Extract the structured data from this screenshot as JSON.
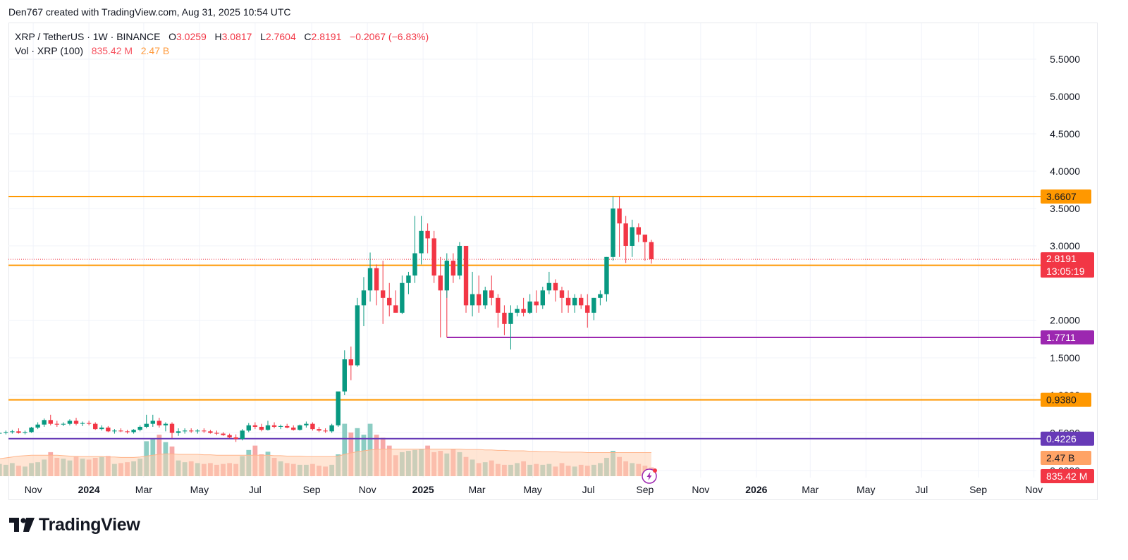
{
  "header": {
    "credit": "Den767 created with TradingView.com, Aug 31, 2025 10:54 UTC"
  },
  "legend": {
    "symbol": "XRP / TetherUS · 1W · BINANCE",
    "o_label": "O",
    "o_value": "3.0259",
    "h_label": "H",
    "h_value": "3.0817",
    "l_label": "L",
    "l_value": "2.7604",
    "c_label": "C",
    "c_value": "2.8191",
    "change": "−0.2067 (−6.83%)",
    "vol_label": "Vol · XRP (100)",
    "vol_value": "835.42 M",
    "vol_ma_value": "2.47 B"
  },
  "brand": {
    "name": "TradingView"
  },
  "colors": {
    "up": "#089981",
    "down": "#f23645",
    "vol_up": "#8ccdc3",
    "vol_down": "#f7a9a7",
    "vol_ma_fill": "#ffcfb0",
    "vol_ma_line": "#ffb48a",
    "orange_line": "#ff9800",
    "purple_line": "#9c27b0",
    "violet_line": "#673ab7",
    "price_badge": "#f23645",
    "grid": "#f0f3fa"
  },
  "chart_data": {
    "type": "candlestick",
    "title": "XRP / TetherUS · 1W · BINANCE",
    "y_axis": {
      "ticks": [
        "5.5000",
        "5.0000",
        "4.5000",
        "4.0000",
        "3.5000",
        "3.0000",
        "2.0000",
        "1.5000",
        "1.0000",
        "0.5000",
        "0.0000"
      ],
      "tick_values": [
        5.5,
        5.0,
        4.5,
        4.0,
        3.5,
        3.0,
        2.0,
        1.5,
        1.0,
        0.5,
        0.0
      ],
      "range": [
        0,
        5.5
      ]
    },
    "x_axis": {
      "ticks": [
        {
          "label": "Nov",
          "date": "2023-11-01",
          "year": false
        },
        {
          "label": "2024",
          "date": "2024-01-01",
          "year": true
        },
        {
          "label": "Mar",
          "date": "2024-03-01",
          "year": false
        },
        {
          "label": "May",
          "date": "2024-05-01",
          "year": false
        },
        {
          "label": "Jul",
          "date": "2024-07-01",
          "year": false
        },
        {
          "label": "Sep",
          "date": "2024-09-01",
          "year": false
        },
        {
          "label": "Nov",
          "date": "2024-11-01",
          "year": false
        },
        {
          "label": "2025",
          "date": "2025-01-01",
          "year": true
        },
        {
          "label": "Mar",
          "date": "2025-03-01",
          "year": false
        },
        {
          "label": "May",
          "date": "2025-05-01",
          "year": false
        },
        {
          "label": "Jul",
          "date": "2025-07-01",
          "year": false
        },
        {
          "label": "Sep",
          "date": "2025-09-01",
          "year": false
        },
        {
          "label": "Nov",
          "date": "2025-11-01",
          "year": false
        },
        {
          "label": "2026",
          "date": "2026-01-01",
          "year": true
        },
        {
          "label": "Mar",
          "date": "2026-03-01",
          "year": false
        },
        {
          "label": "May",
          "date": "2026-05-01",
          "year": false
        },
        {
          "label": "Jul",
          "date": "2026-07-01",
          "year": false
        },
        {
          "label": "Sep",
          "date": "2026-09-01",
          "year": false
        },
        {
          "label": "Nov",
          "date": "2026-11-01",
          "year": false
        }
      ]
    },
    "horizontal_levels": [
      {
        "value": 3.6607,
        "label": "3.6607",
        "color": "#ff9800",
        "from_date": null
      },
      {
        "value": 2.7387,
        "label": "2.7387",
        "color": "#ff9800",
        "from_date": null
      },
      {
        "value": 1.7711,
        "label": "1.7711",
        "color": "#9c27b0",
        "from_date": "2025-01-27"
      },
      {
        "value": 0.938,
        "label": "0.9380",
        "color": "#ff9800",
        "from_date": null
      },
      {
        "value": 0.4226,
        "label": "0.4226",
        "color": "#673ab7",
        "from_date": null
      }
    ],
    "last_price": {
      "value": 2.8191,
      "label": "2.8191",
      "countdown": "13:05:19"
    },
    "volume_badges": {
      "ma": "2.47 B",
      "current": "835.42 M"
    },
    "first_week": "2023-09-25",
    "candles": [
      [
        0.49,
        0.52,
        0.47,
        0.5
      ],
      [
        0.5,
        0.53,
        0.48,
        0.51
      ],
      [
        0.51,
        0.54,
        0.49,
        0.52
      ],
      [
        0.52,
        0.56,
        0.49,
        0.5
      ],
      [
        0.5,
        0.53,
        0.48,
        0.51
      ],
      [
        0.51,
        0.58,
        0.5,
        0.57
      ],
      [
        0.57,
        0.64,
        0.55,
        0.61
      ],
      [
        0.61,
        0.69,
        0.58,
        0.67
      ],
      [
        0.67,
        0.74,
        0.6,
        0.62
      ],
      [
        0.62,
        0.66,
        0.58,
        0.61
      ],
      [
        0.61,
        0.64,
        0.59,
        0.62
      ],
      [
        0.62,
        0.68,
        0.6,
        0.66
      ],
      [
        0.66,
        0.7,
        0.6,
        0.62
      ],
      [
        0.62,
        0.65,
        0.59,
        0.63
      ],
      [
        0.63,
        0.66,
        0.6,
        0.62
      ],
      [
        0.62,
        0.64,
        0.54,
        0.55
      ],
      [
        0.55,
        0.6,
        0.53,
        0.57
      ],
      [
        0.57,
        0.59,
        0.51,
        0.52
      ],
      [
        0.52,
        0.55,
        0.49,
        0.53
      ],
      [
        0.53,
        0.56,
        0.51,
        0.52
      ],
      [
        0.52,
        0.54,
        0.49,
        0.51
      ],
      [
        0.51,
        0.55,
        0.49,
        0.54
      ],
      [
        0.54,
        0.6,
        0.52,
        0.58
      ],
      [
        0.58,
        0.74,
        0.56,
        0.62
      ],
      [
        0.62,
        0.74,
        0.58,
        0.66
      ],
      [
        0.66,
        0.7,
        0.57,
        0.6
      ],
      [
        0.6,
        0.64,
        0.52,
        0.62
      ],
      [
        0.62,
        0.64,
        0.43,
        0.5
      ],
      [
        0.5,
        0.56,
        0.46,
        0.52
      ],
      [
        0.52,
        0.56,
        0.49,
        0.53
      ],
      [
        0.53,
        0.56,
        0.5,
        0.52
      ],
      [
        0.52,
        0.55,
        0.49,
        0.53
      ],
      [
        0.53,
        0.56,
        0.5,
        0.52
      ],
      [
        0.52,
        0.54,
        0.49,
        0.5
      ],
      [
        0.5,
        0.53,
        0.47,
        0.49
      ],
      [
        0.49,
        0.51,
        0.46,
        0.47
      ],
      [
        0.47,
        0.49,
        0.43,
        0.44
      ],
      [
        0.44,
        0.48,
        0.38,
        0.42
      ],
      [
        0.42,
        0.55,
        0.4,
        0.53
      ],
      [
        0.53,
        0.63,
        0.51,
        0.6
      ],
      [
        0.6,
        0.64,
        0.55,
        0.58
      ],
      [
        0.58,
        0.62,
        0.52,
        0.54
      ],
      [
        0.54,
        0.66,
        0.53,
        0.6
      ],
      [
        0.6,
        0.64,
        0.56,
        0.58
      ],
      [
        0.58,
        0.61,
        0.55,
        0.59
      ],
      [
        0.59,
        0.62,
        0.56,
        0.57
      ],
      [
        0.57,
        0.6,
        0.53,
        0.54
      ],
      [
        0.54,
        0.61,
        0.53,
        0.6
      ],
      [
        0.6,
        0.65,
        0.57,
        0.62
      ],
      [
        0.62,
        0.64,
        0.53,
        0.55
      ],
      [
        0.55,
        0.58,
        0.51,
        0.53
      ],
      [
        0.53,
        0.56,
        0.5,
        0.52
      ],
      [
        0.52,
        0.62,
        0.5,
        0.6
      ],
      [
        0.6,
        1.02,
        0.58,
        1.05
      ],
      [
        1.05,
        1.6,
        1.0,
        1.48
      ],
      [
        1.48,
        1.65,
        1.2,
        1.4
      ],
      [
        1.4,
        2.3,
        1.38,
        2.2
      ],
      [
        2.2,
        2.58,
        1.92,
        2.4
      ],
      [
        2.4,
        2.91,
        2.25,
        2.7
      ],
      [
        2.7,
        2.75,
        2.2,
        2.4
      ],
      [
        2.4,
        2.8,
        1.95,
        2.3
      ],
      [
        2.3,
        2.5,
        2.05,
        2.2
      ],
      [
        2.2,
        2.4,
        2.1,
        2.1
      ],
      [
        2.1,
        2.6,
        2.08,
        2.5
      ],
      [
        2.5,
        2.65,
        2.35,
        2.6
      ],
      [
        2.6,
        3.4,
        2.5,
        2.9
      ],
      [
        2.9,
        3.4,
        2.75,
        3.2
      ],
      [
        3.2,
        3.3,
        2.9,
        3.1
      ],
      [
        3.1,
        3.2,
        2.5,
        2.6
      ],
      [
        2.6,
        2.85,
        1.77,
        2.4
      ],
      [
        2.4,
        2.9,
        2.3,
        2.8
      ],
      [
        2.8,
        2.9,
        2.5,
        2.6
      ],
      [
        2.6,
        3.05,
        2.55,
        3.0
      ],
      [
        3.0,
        3.0,
        2.1,
        2.2
      ],
      [
        2.2,
        2.65,
        2.05,
        2.35
      ],
      [
        2.35,
        2.6,
        2.1,
        2.2
      ],
      [
        2.2,
        2.45,
        2.15,
        2.4
      ],
      [
        2.4,
        2.6,
        2.2,
        2.3
      ],
      [
        2.3,
        2.35,
        1.9,
        2.1
      ],
      [
        2.1,
        2.2,
        1.8,
        1.95
      ],
      [
        1.95,
        2.2,
        1.61,
        2.1
      ],
      [
        2.1,
        2.2,
        2.05,
        2.15
      ],
      [
        2.15,
        2.3,
        2.05,
        2.1
      ],
      [
        2.1,
        2.35,
        2.08,
        2.25
      ],
      [
        2.25,
        2.4,
        2.1,
        2.2
      ],
      [
        2.2,
        2.45,
        2.15,
        2.4
      ],
      [
        2.4,
        2.65,
        2.35,
        2.5
      ],
      [
        2.5,
        2.55,
        2.25,
        2.4
      ],
      [
        2.4,
        2.45,
        2.1,
        2.3
      ],
      [
        2.3,
        2.4,
        2.1,
        2.2
      ],
      [
        2.2,
        2.35,
        2.1,
        2.3
      ],
      [
        2.3,
        2.35,
        2.15,
        2.2
      ],
      [
        2.2,
        2.35,
        1.9,
        2.1
      ],
      [
        2.1,
        2.3,
        2.0,
        2.3
      ],
      [
        2.3,
        2.4,
        2.2,
        2.35
      ],
      [
        2.35,
        2.85,
        2.25,
        2.85
      ],
      [
        2.85,
        3.66,
        2.8,
        3.5
      ],
      [
        3.5,
        3.66,
        2.85,
        3.3
      ],
      [
        3.3,
        3.4,
        2.77,
        3.0
      ],
      [
        3.0,
        3.35,
        2.85,
        3.25
      ],
      [
        3.25,
        3.3,
        3.05,
        3.15
      ],
      [
        3.15,
        3.1,
        2.8,
        3.05
      ],
      [
        3.05,
        3.08,
        2.76,
        2.82
      ]
    ],
    "volume": [
      0.28,
      0.26,
      0.3,
      0.24,
      0.22,
      0.3,
      0.32,
      0.38,
      0.55,
      0.42,
      0.4,
      0.36,
      0.46,
      0.4,
      0.38,
      0.42,
      0.44,
      0.46,
      0.28,
      0.3,
      0.32,
      0.34,
      0.4,
      0.8,
      0.85,
      0.95,
      0.78,
      0.68,
      0.36,
      0.32,
      0.34,
      0.3,
      0.28,
      0.3,
      0.26,
      0.28,
      0.3,
      0.28,
      0.46,
      0.6,
      0.7,
      0.5,
      0.56,
      0.42,
      0.34,
      0.3,
      0.28,
      0.26,
      0.26,
      0.28,
      0.24,
      0.22,
      0.26,
      0.5,
      1.2,
      1.0,
      1.1,
      0.95,
      1.2,
      0.95,
      0.88,
      0.7,
      0.48,
      0.55,
      0.58,
      0.6,
      0.62,
      0.7,
      0.55,
      0.58,
      0.52,
      0.62,
      0.55,
      0.44,
      0.38,
      0.3,
      0.32,
      0.36,
      0.28,
      0.26,
      0.26,
      0.3,
      0.34,
      0.26,
      0.28,
      0.26,
      0.28,
      0.22,
      0.3,
      0.24,
      0.22,
      0.26,
      0.24,
      0.26,
      0.3,
      0.42,
      0.58,
      0.44,
      0.34,
      0.3,
      0.28,
      0.24,
      0.2
    ],
    "volume_ma": [
      0.4,
      0.42,
      0.44,
      0.46,
      0.47,
      0.48,
      0.48,
      0.48,
      0.48,
      0.48,
      0.47,
      0.46,
      0.45,
      0.45,
      0.45,
      0.45,
      0.45,
      0.44,
      0.44,
      0.43,
      0.43,
      0.43,
      0.44,
      0.46,
      0.48,
      0.5,
      0.51,
      0.51,
      0.5,
      0.5,
      0.5,
      0.5,
      0.49,
      0.49,
      0.48,
      0.48,
      0.48,
      0.48,
      0.48,
      0.48,
      0.48,
      0.48,
      0.48,
      0.47,
      0.47,
      0.46,
      0.46,
      0.46,
      0.45,
      0.45,
      0.45,
      0.45,
      0.45,
      0.46,
      0.5,
      0.53,
      0.56,
      0.58,
      0.6,
      0.61,
      0.62,
      0.62,
      0.62,
      0.62,
      0.62,
      0.62,
      0.62,
      0.62,
      0.62,
      0.62,
      0.62,
      0.62,
      0.62,
      0.61,
      0.61,
      0.61,
      0.6,
      0.6,
      0.59,
      0.59,
      0.58,
      0.58,
      0.58,
      0.57,
      0.57,
      0.56,
      0.56,
      0.56,
      0.55,
      0.55,
      0.55,
      0.55,
      0.54,
      0.54,
      0.54,
      0.54,
      0.54,
      0.54,
      0.54,
      0.54,
      0.54,
      0.54,
      0.54
    ]
  }
}
